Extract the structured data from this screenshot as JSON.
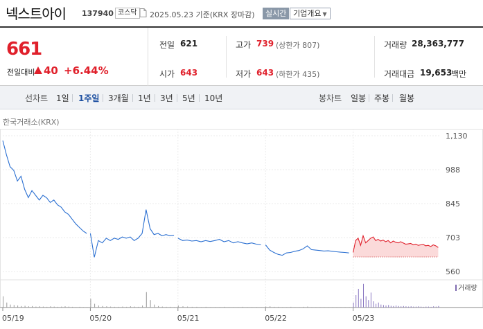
{
  "header": {
    "name": "넥스트아이",
    "code": "137940",
    "market": "코스닥",
    "date": "2025.05.23",
    "basis": "기준(KRX 장마감)",
    "realtime": "실시간",
    "company_info": "기업개요"
  },
  "quote": {
    "price": "661",
    "change_label": "전일대비",
    "change": "40",
    "change_pct": "+6.44%",
    "prev_label": "전일",
    "prev": "621",
    "high_label": "고가",
    "high": "739",
    "upper_limit": "(상한가 807)",
    "volume_label": "거래량",
    "volume": "28,363,777",
    "open_label": "시가",
    "open": "643",
    "low_label": "저가",
    "low": "643",
    "lower_limit": "(하한가 435)",
    "amount_label": "거래대금",
    "amount": "19,653",
    "amount_unit": "백만"
  },
  "colors": {
    "up": "#e0202b",
    "line": "#2a6fd1",
    "active_tab": "#1c4fa0"
  },
  "tabs": {
    "line_label": "선차트",
    "line_periods": [
      "1일",
      "1주일",
      "3개월",
      "1년",
      "3년",
      "5년",
      "10년"
    ],
    "active": "1주일",
    "candle_label": "봉차트",
    "candle_periods": [
      "일봉",
      "주봉",
      "월봉"
    ]
  },
  "chart_caption": "한국거래소(KRX)",
  "chart_data": {
    "type": "line",
    "y_ticks": [
      "1,130",
      "988",
      "845",
      "703",
      "560"
    ],
    "ylim": [
      560,
      1130
    ],
    "x_ticks": [
      "05/19",
      "05/20",
      "05/21",
      "05/22",
      "05/23"
    ],
    "volume_legend": "거래량",
    "prev_close": 621,
    "series": [
      {
        "day": "05/19",
        "values": [
          1110,
          1050,
          1000,
          985,
          940,
          960,
          905,
          870,
          900,
          880,
          860,
          880,
          870,
          850,
          860,
          840,
          830,
          810,
          800,
          780,
          760,
          745,
          730,
          720
        ]
      },
      {
        "day": "05/20",
        "values": [
          720,
          620,
          690,
          680,
          700,
          690,
          700,
          695,
          705,
          700,
          705,
          690,
          700,
          720,
          820,
          740,
          715,
          720,
          710,
          715,
          710,
          712
        ]
      },
      {
        "day": "05/21",
        "values": [
          700,
          690,
          692,
          688,
          690,
          685,
          690,
          686,
          690,
          695,
          685,
          690,
          680,
          685,
          680,
          676,
          680,
          675,
          672
        ]
      },
      {
        "day": "05/22",
        "values": [
          672,
          650,
          640,
          632,
          628,
          638,
          640,
          645,
          648,
          655,
          668,
          652,
          650,
          648,
          646,
          647,
          645,
          643,
          641,
          640,
          638
        ]
      },
      {
        "day": "05/23",
        "values": [
          640,
          690,
          700,
          670,
          710,
          680,
          690,
          700,
          705,
          690,
          695,
          688,
          692,
          685,
          690,
          680,
          688,
          683,
          680,
          685,
          680,
          675,
          676,
          678,
          672,
          675,
          670,
          672,
          674,
          668,
          670,
          665,
          672,
          668,
          661
        ]
      }
    ],
    "volume": [
      {
        "day": "05/19",
        "values": [
          0.45,
          0.2,
          0.12,
          0.1,
          0.08,
          0.06,
          0.07,
          0.05,
          0.06,
          0.04,
          0.05,
          0.04,
          0.03,
          0.05,
          0.04,
          0.03,
          0.04,
          0.05,
          0.04,
          0.03,
          0.02,
          0.03,
          0.02,
          0.02
        ]
      },
      {
        "day": "05/20",
        "values": [
          0.35,
          0.15,
          0.08,
          0.06,
          0.05,
          0.04,
          0.03,
          0.03,
          0.04,
          0.03,
          0.05,
          0.04,
          0.03,
          0.08,
          0.62,
          0.3,
          0.12,
          0.06,
          0.04,
          0.03,
          0.03,
          0.02
        ]
      },
      {
        "day": "05/21",
        "values": [
          0.08,
          0.05,
          0.04,
          0.03,
          0.03,
          0.02,
          0.03,
          0.02,
          0.02,
          0.02,
          0.03,
          0.02,
          0.02,
          0.02,
          0.03,
          0.02,
          0.02,
          0.02,
          0.02
        ]
      },
      {
        "day": "05/22",
        "values": [
          0.04,
          0.05,
          0.03,
          0.03,
          0.02,
          0.02,
          0.03,
          0.02,
          0.02,
          0.03,
          0.04,
          0.02,
          0.02,
          0.02,
          0.02,
          0.02,
          0.02,
          0.02,
          0.02,
          0.02,
          0.02
        ]
      },
      {
        "day": "05/23",
        "values": [
          0.2,
          0.5,
          0.75,
          0.35,
          0.95,
          0.45,
          0.3,
          0.6,
          0.25,
          0.15,
          0.2,
          0.12,
          0.1,
          0.08,
          0.1,
          0.07,
          0.06,
          0.08,
          0.06,
          0.05,
          0.06,
          0.05,
          0.04,
          0.05,
          0.04,
          0.04,
          0.05,
          0.04,
          0.03,
          0.04,
          0.04,
          0.03,
          0.05,
          0.04,
          0.06
        ]
      }
    ]
  }
}
